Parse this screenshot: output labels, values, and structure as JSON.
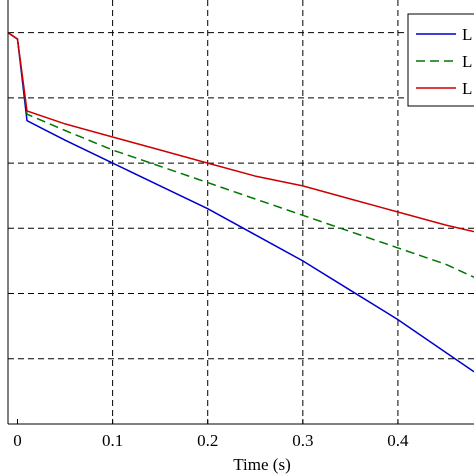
{
  "chart_data": {
    "type": "line",
    "xlabel": "Time (s)",
    "ylabel": "",
    "xlim": [
      -0.01,
      0.48
    ],
    "ylim": [
      0.4,
      1.05
    ],
    "grid": true,
    "legend_position": "top-right",
    "x_ticks": [
      "0",
      "0.1",
      "0.2",
      "0.3",
      "0.4"
    ],
    "x_tick_values": [
      0,
      0.1,
      0.2,
      0.3,
      0.4
    ],
    "y_gridlines": [
      0.5,
      0.6,
      0.7,
      0.8,
      0.9,
      1.0
    ],
    "series": [
      {
        "name": "L",
        "color": "#0000cc",
        "dash": "solid",
        "x": [
          -0.01,
          0.0,
          0.01,
          0.05,
          0.1,
          0.15,
          0.2,
          0.25,
          0.3,
          0.35,
          0.4,
          0.45,
          0.48
        ],
        "y": [
          1.0,
          0.99,
          0.865,
          0.835,
          0.8,
          0.765,
          0.73,
          0.69,
          0.65,
          0.605,
          0.56,
          0.51,
          0.48
        ]
      },
      {
        "name": "L",
        "color": "#007700",
        "dash": "dashed",
        "x": [
          -0.01,
          0.0,
          0.01,
          0.05,
          0.1,
          0.15,
          0.2,
          0.25,
          0.3,
          0.35,
          0.4,
          0.45,
          0.48
        ],
        "y": [
          1.0,
          0.99,
          0.875,
          0.85,
          0.82,
          0.795,
          0.77,
          0.745,
          0.72,
          0.695,
          0.67,
          0.645,
          0.625
        ]
      },
      {
        "name": "L",
        "color": "#cc0000",
        "dash": "solid",
        "x": [
          -0.01,
          0.0,
          0.01,
          0.05,
          0.1,
          0.15,
          0.2,
          0.25,
          0.3,
          0.35,
          0.4,
          0.45,
          0.48
        ],
        "y": [
          1.0,
          0.99,
          0.88,
          0.86,
          0.84,
          0.82,
          0.8,
          0.78,
          0.765,
          0.745,
          0.725,
          0.705,
          0.695
        ]
      }
    ]
  }
}
